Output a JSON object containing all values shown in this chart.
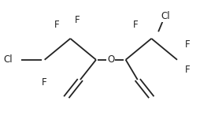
{
  "background": "#ffffff",
  "line_color": "#222222",
  "line_width": 1.3,
  "font_size": 8.5,
  "font_color": "#222222",
  "figsize": [
    2.54,
    1.61
  ],
  "dpi": 100,
  "xlim": [
    0,
    10
  ],
  "ylim": [
    0,
    10
  ]
}
